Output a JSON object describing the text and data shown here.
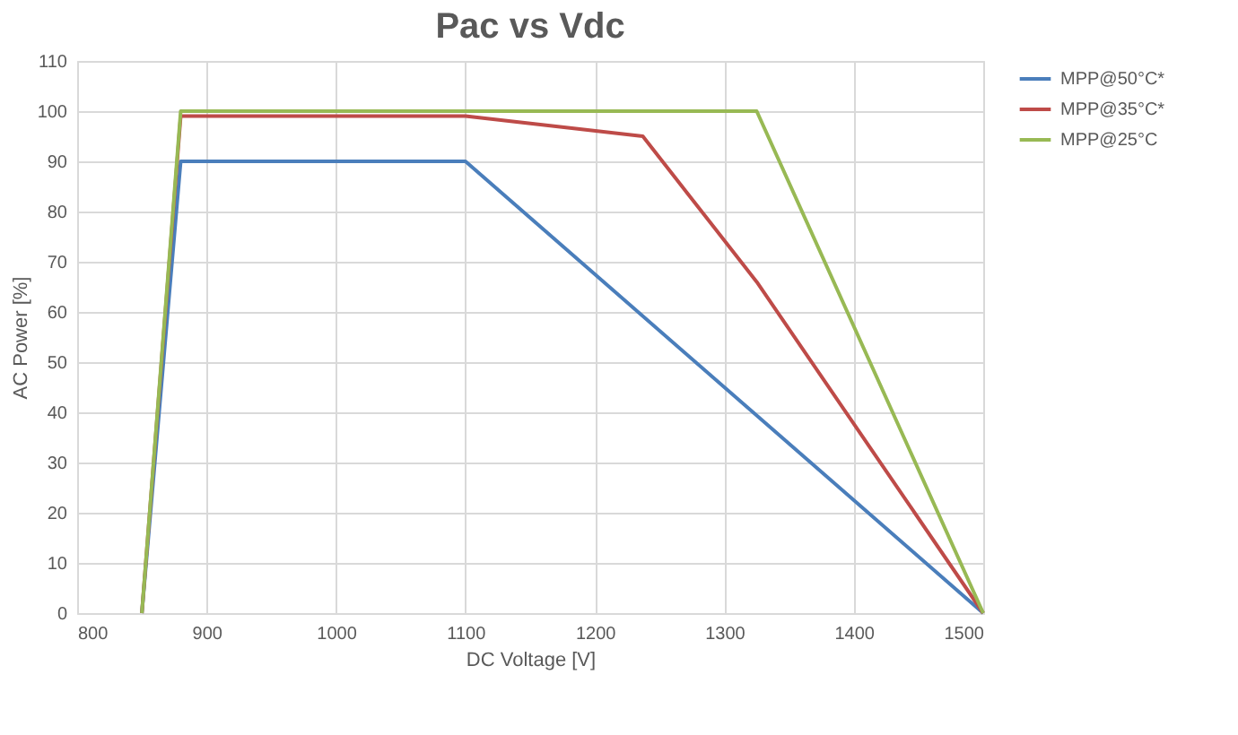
{
  "chart_data": {
    "type": "line",
    "title": "Pac vs Vdc",
    "xlabel": "DC Voltage [V]",
    "ylabel": "AC Power [%]",
    "xlim": [
      800,
      1500
    ],
    "xticks": [
      800,
      900,
      1000,
      1100,
      1200,
      1300,
      1400,
      1500
    ],
    "ylim": [
      0,
      110
    ],
    "yticks": [
      0,
      10,
      20,
      30,
      40,
      50,
      60,
      70,
      80,
      90,
      100,
      110
    ],
    "grid": true,
    "legend": "right",
    "marker": "none",
    "line_style": "solid",
    "series": [
      {
        "name": "MPP@50°C*",
        "color": "#4a7ebb",
        "x": [
          850,
          880,
          1100,
          1500
        ],
        "values": [
          0,
          90,
          90,
          0
        ]
      },
      {
        "name": "MPP@35°C*",
        "color": "#be4b48",
        "x": [
          850,
          880,
          1100,
          1237,
          1325,
          1500
        ],
        "values": [
          0,
          99,
          99,
          95,
          66,
          0
        ]
      },
      {
        "name": "MPP@25°C",
        "color": "#98b954",
        "x": [
          850,
          880,
          1325,
          1500
        ],
        "values": [
          0,
          100,
          100,
          0
        ]
      }
    ]
  }
}
